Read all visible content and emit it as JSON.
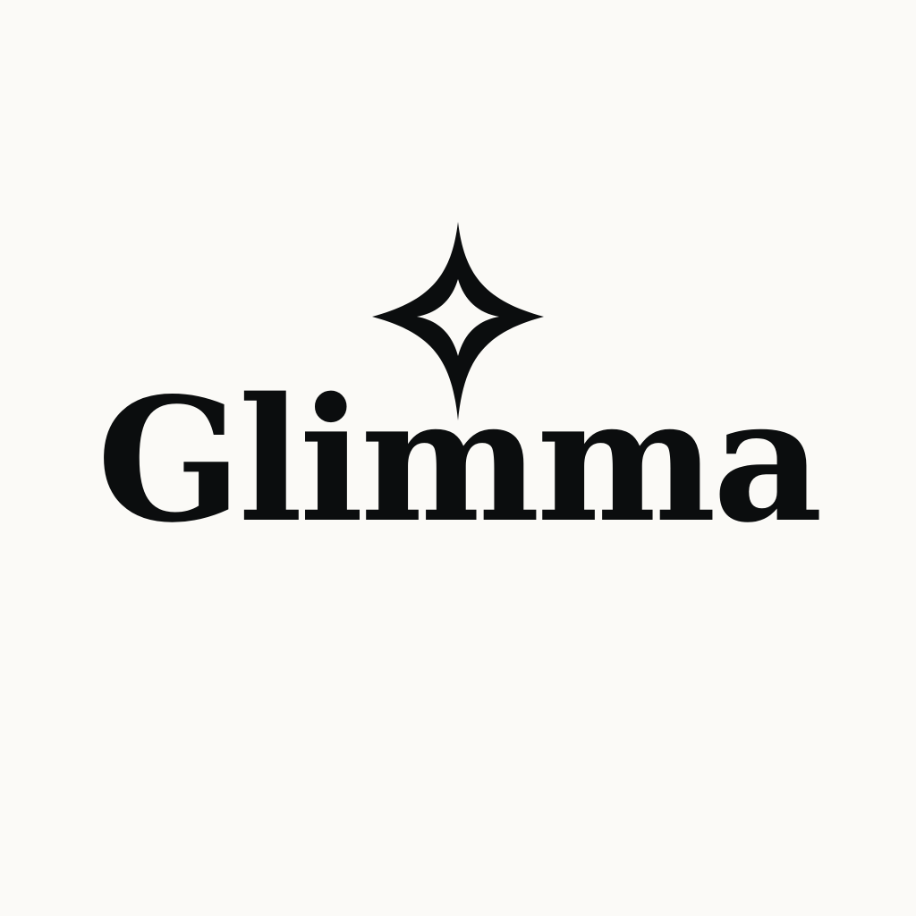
{
  "brand": {
    "name": "Glimma",
    "icon": "sparkle-icon"
  },
  "colors": {
    "background": "#FBFAF7",
    "ink": "#0B0D0E"
  }
}
